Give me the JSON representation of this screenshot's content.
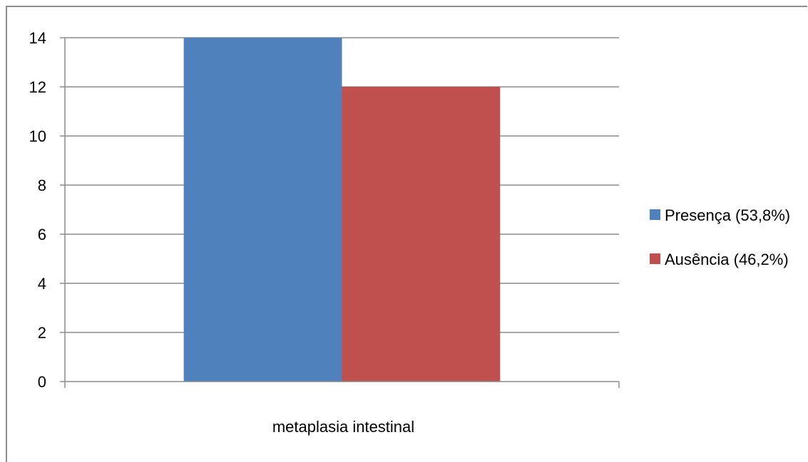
{
  "chart_data": {
    "type": "bar",
    "title": "",
    "xlabel": "",
    "ylabel": "",
    "categories": [
      "metaplasia intestinal"
    ],
    "series": [
      {
        "name": "Presença (53,8%)",
        "values": [
          14
        ],
        "color": "#4f81bd"
      },
      {
        "name": "Ausência (46,2%)",
        "values": [
          12
        ],
        "color": "#c0504d"
      }
    ],
    "ylim": [
      0,
      14
    ],
    "yticks": [
      "0",
      "2",
      "4",
      "6",
      "8",
      "10",
      "12",
      "14"
    ],
    "grid": true,
    "legend_position": "right"
  }
}
